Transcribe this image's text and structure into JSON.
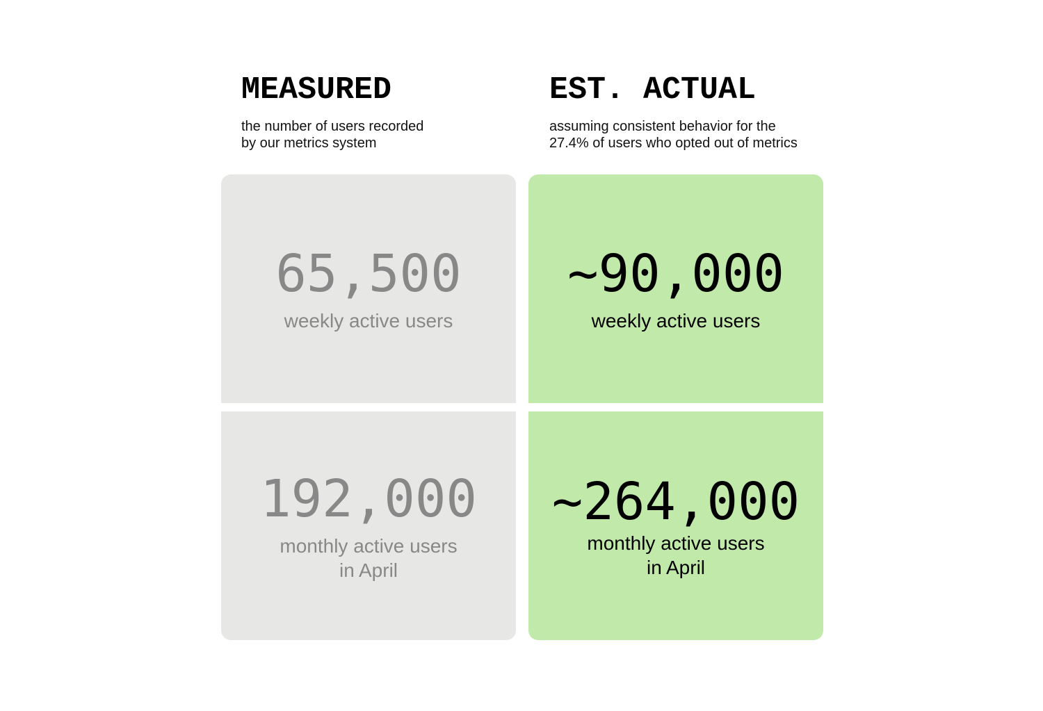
{
  "columns": [
    {
      "title": "MEASURED",
      "subtitle": [
        "the number of users recorded",
        "by our metrics system"
      ],
      "cards": [
        {
          "value": "65,500",
          "label": [
            "weekly active users"
          ]
        },
        {
          "value": "192,000",
          "label": [
            "monthly active users",
            "in April"
          ]
        }
      ]
    },
    {
      "title": "EST. ACTUAL",
      "subtitle": [
        "assuming consistent behavior for the",
        "27.4% of users who opted out of metrics"
      ],
      "cards": [
        {
          "value": "~90,000",
          "label": [
            "weekly active users"
          ]
        },
        {
          "value": "~264,000",
          "label": [
            "monthly active users",
            "in April"
          ]
        }
      ]
    }
  ]
}
